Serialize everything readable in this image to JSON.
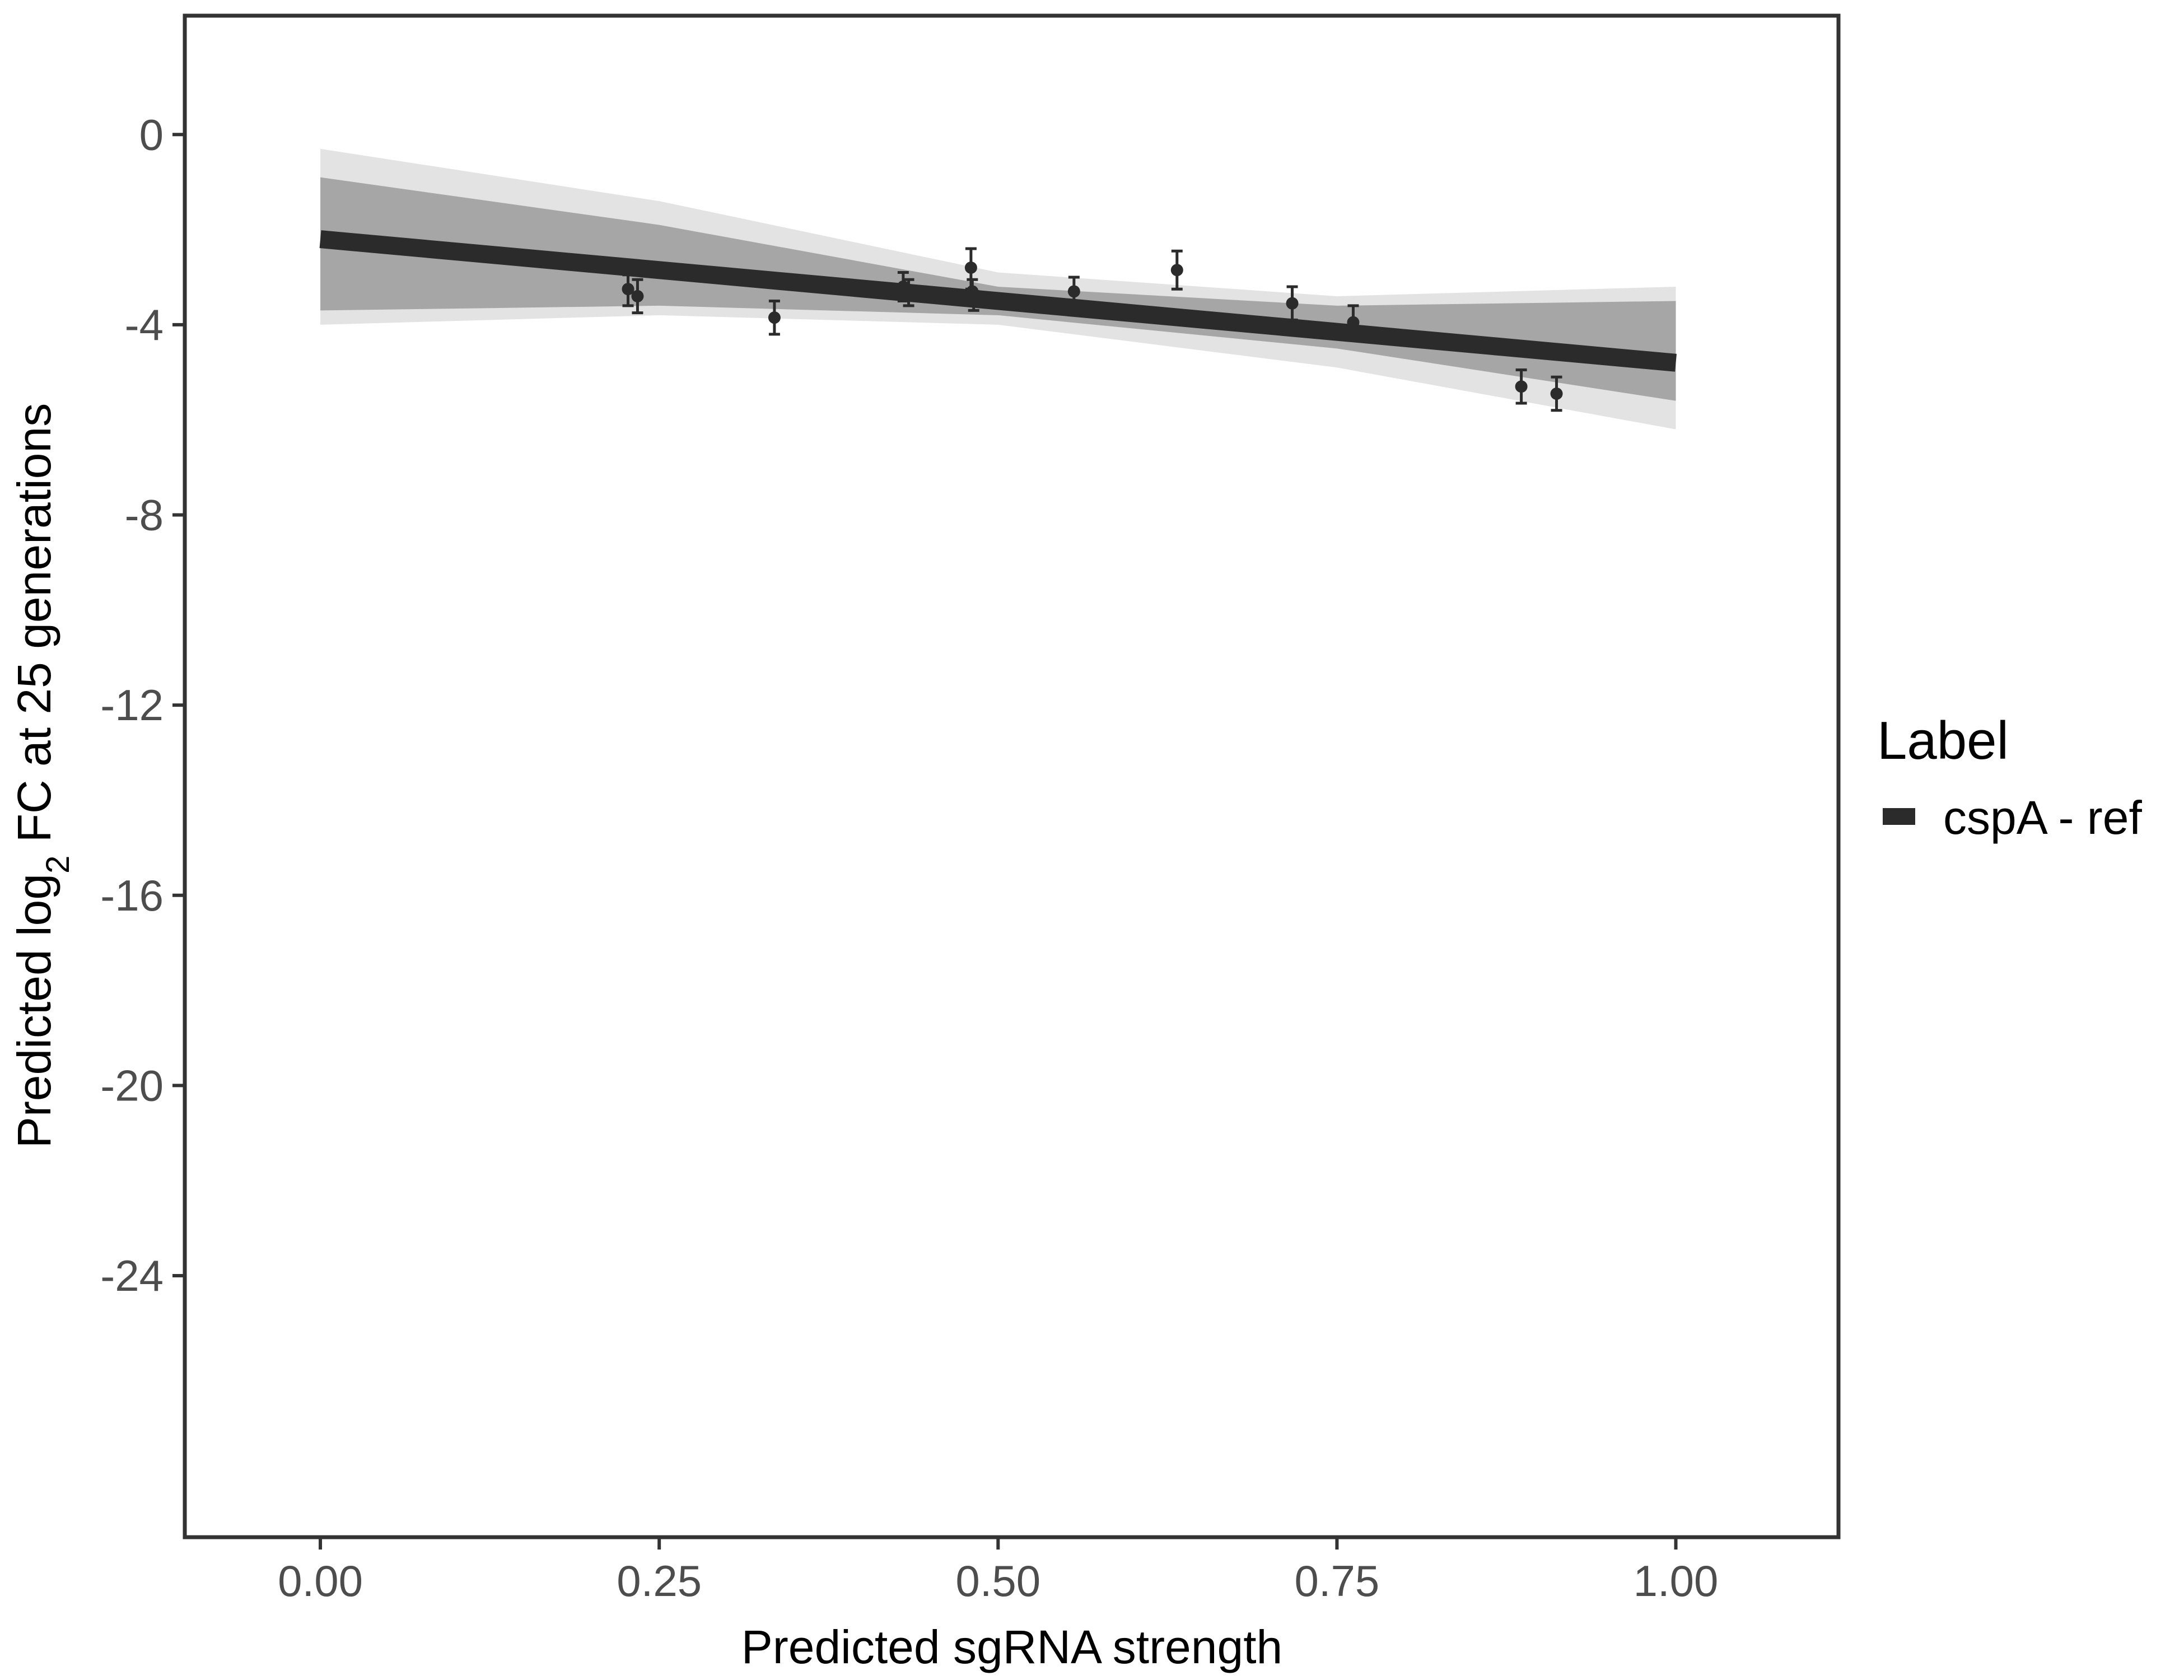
{
  "chart_data": {
    "type": "line",
    "title": "",
    "xlabel": "Predicted sgRNA strength",
    "ylabel_prefix": "Predicted  log",
    "ylabel_subscript": "2",
    "ylabel_suffix": " FC at 25 generations",
    "xlim": [
      -0.1,
      1.12
    ],
    "ylim": [
      -29.5,
      2.5
    ],
    "x_ticks": [
      0.0,
      0.25,
      0.5,
      0.75,
      1.0
    ],
    "x_tick_labels": [
      "0.00",
      "0.25",
      "0.50",
      "0.75",
      "1.00"
    ],
    "y_ticks": [
      0,
      -4,
      -8,
      -12,
      -16,
      -20,
      -24
    ],
    "y_tick_labels": [
      "0",
      "-4",
      "-8",
      "-12",
      "-16",
      "-20",
      "-24"
    ],
    "grid": false,
    "legend": {
      "title": "Label",
      "position": "right",
      "entries": [
        {
          "name": "cspA - ref",
          "color": "#2b2b2b"
        }
      ]
    },
    "series": [
      {
        "name": "cspA - ref",
        "kind": "fit-line",
        "x": [
          0.0,
          1.0
        ],
        "y": [
          -2.2,
          -4.8
        ],
        "color": "#2b2b2b"
      }
    ],
    "uncertainty_band": {
      "x": [
        0.0,
        0.25,
        0.5,
        0.75,
        1.0
      ],
      "lower": [
        -4.0,
        -3.8,
        -4.0,
        -4.9,
        -6.2
      ],
      "upper": [
        -0.3,
        -1.4,
        -2.9,
        -3.4,
        -3.2
      ],
      "inner_lower": [
        -3.7,
        -3.6,
        -3.8,
        -4.5,
        -5.6
      ],
      "inner_upper": [
        -0.9,
        -1.9,
        -3.2,
        -3.6,
        -3.5
      ],
      "color": "#a6a6a6"
    },
    "points": {
      "color": "#2b2b2b",
      "x": [
        0.227,
        0.234,
        0.335,
        0.43,
        0.434,
        0.48,
        0.481,
        0.482,
        0.556,
        0.632,
        0.717,
        0.762,
        0.886,
        0.912
      ],
      "y": [
        -3.25,
        -3.4,
        -3.85,
        -3.2,
        -3.35,
        -2.8,
        -3.3,
        -3.5,
        -3.3,
        -2.85,
        -3.55,
        -3.95,
        -5.3,
        -5.45
      ],
      "err_low": [
        -3.6,
        -3.75,
        -4.2,
        -3.5,
        -3.6,
        -3.25,
        -3.55,
        -3.7,
        -3.6,
        -3.25,
        -3.9,
        -4.25,
        -5.65,
        -5.8
      ],
      "err_high": [
        -2.95,
        -3.05,
        -3.5,
        -2.9,
        -3.05,
        -2.4,
        -3.05,
        -3.3,
        -3.0,
        -2.45,
        -3.2,
        -3.6,
        -4.95,
        -5.1
      ]
    }
  }
}
